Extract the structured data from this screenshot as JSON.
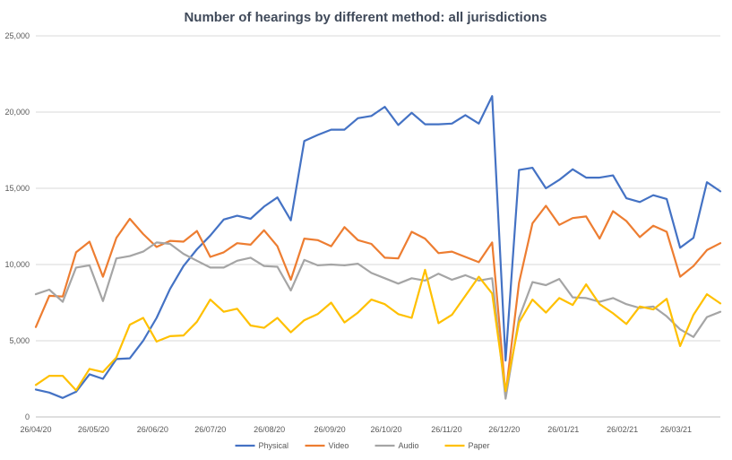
{
  "chart_data": {
    "type": "line",
    "title": "Number of hearings by different method: all jurisdictions",
    "xlabel": "",
    "ylabel": "",
    "ylim": [
      0,
      25000
    ],
    "y_ticks": [
      0,
      5000,
      10000,
      15000,
      20000,
      25000
    ],
    "y_tick_labels": [
      "0",
      "5,000",
      "10,000",
      "15,000",
      "20,000",
      "25,000"
    ],
    "x_tick_labels": [
      "26/04/20",
      "26/05/20",
      "26/06/20",
      "26/07/20",
      "26/08/20",
      "26/09/20",
      "26/10/20",
      "26/11/20",
      "26/12/20",
      "26/01/21",
      "26/02/21",
      "26/03/21"
    ],
    "x_tick_week_index": [
      0,
      4.3,
      8.7,
      13,
      17.4,
      21.9,
      26.1,
      30.6,
      34.9,
      39.3,
      43.7,
      47.7
    ],
    "week_count": 52,
    "legend_position": "bottom",
    "series": [
      {
        "name": "Physical",
        "color": "#4472c4",
        "values": [
          1800,
          1600,
          1250,
          1650,
          2800,
          2500,
          3800,
          3850,
          5000,
          6500,
          8400,
          9900,
          11000,
          11900,
          12950,
          13200,
          13000,
          13800,
          14400,
          12900,
          18100,
          18500,
          18850,
          18850,
          19600,
          19750,
          20350,
          19150,
          19950,
          19200,
          19200,
          19250,
          19800,
          19250,
          21050,
          3700,
          16200,
          16350,
          15000,
          15550,
          16250,
          15700,
          15700,
          15850,
          14350,
          14100,
          14550,
          14300,
          11100,
          11750,
          15400,
          14800
        ]
      },
      {
        "name": "Video",
        "color": "#ed7d31",
        "values": [
          5900,
          7950,
          7900,
          10800,
          11500,
          9200,
          11750,
          13000,
          12000,
          11150,
          11550,
          11500,
          12200,
          10500,
          10800,
          11400,
          11300,
          12250,
          11200,
          9000,
          11700,
          11600,
          11200,
          12450,
          11600,
          11350,
          10450,
          10400,
          12150,
          11700,
          10750,
          10850,
          10500,
          10150,
          11450,
          1500,
          8800,
          12700,
          13850,
          12600,
          13050,
          13150,
          11700,
          13500,
          12850,
          11800,
          12550,
          12150,
          9200,
          9900,
          10950,
          11400
        ]
      },
      {
        "name": "Audio",
        "color": "#a5a5a5",
        "values": [
          8050,
          8350,
          7550,
          9800,
          9950,
          7600,
          10400,
          10550,
          10850,
          11450,
          11350,
          10700,
          10250,
          9800,
          9800,
          10250,
          10450,
          9900,
          9850,
          8300,
          10300,
          9950,
          10000,
          9950,
          10050,
          9450,
          9100,
          8750,
          9100,
          8950,
          9400,
          9000,
          9300,
          8950,
          9100,
          1200,
          6500,
          8850,
          8650,
          9050,
          7850,
          7800,
          7550,
          7800,
          7400,
          7150,
          7250,
          6600,
          5750,
          5250,
          6550,
          6900
        ]
      },
      {
        "name": "Paper",
        "color": "#ffc000",
        "values": [
          2100,
          2700,
          2700,
          1750,
          3150,
          2950,
          3900,
          6050,
          6500,
          4950,
          5300,
          5350,
          6250,
          7700,
          6900,
          7100,
          6000,
          5850,
          6500,
          5550,
          6350,
          6750,
          7500,
          6200,
          6850,
          7700,
          7400,
          6750,
          6500,
          9650,
          6150,
          6700,
          7950,
          9200,
          8100,
          1700,
          6200,
          7700,
          6850,
          7800,
          7350,
          8700,
          7400,
          6800,
          6100,
          7250,
          7050,
          7750,
          4650,
          6700,
          8050,
          7450
        ]
      }
    ]
  }
}
